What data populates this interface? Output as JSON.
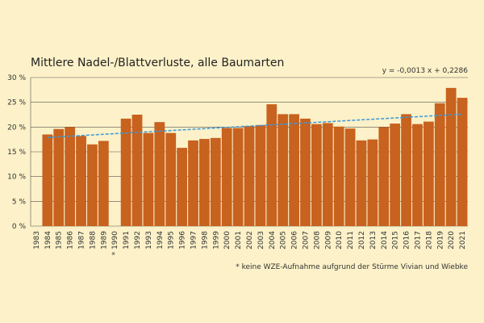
{
  "chart_data": {
    "type": "bar",
    "title": "Mittlere Nadel-/Blattverluste, alle Baumarten",
    "footnote": "* keine WZE-Aufnahme aufgrund der Stürme Vivian und Wiebke",
    "categories": [
      "1983",
      "1984",
      "1985",
      "1986",
      "1987",
      "1988",
      "1989",
      "* 1990",
      "1991",
      "1992",
      "1993",
      "1994",
      "1995",
      "1996",
      "1997",
      "1998",
      "1999",
      "2000",
      "2001",
      "2002",
      "2003",
      "2004",
      "2005",
      "2006",
      "2007",
      "2008",
      "2009",
      "2010",
      "2011",
      "2012",
      "2013",
      "2014",
      "2015",
      "2016",
      "2017",
      "2018",
      "2019",
      "2020",
      "2021"
    ],
    "values": [
      null,
      18.5,
      19.6,
      20.0,
      18.2,
      16.5,
      17.2,
      null,
      21.7,
      22.5,
      18.8,
      21.0,
      18.8,
      15.8,
      17.3,
      17.6,
      17.8,
      19.8,
      19.8,
      20.2,
      20.4,
      24.6,
      22.6,
      22.6,
      21.7,
      20.6,
      20.8,
      20.1,
      19.7,
      17.3,
      17.5,
      20.0,
      20.7,
      22.6,
      20.6,
      21.1,
      24.8,
      27.9,
      25.9
    ],
    "color": "#c8621f",
    "ylim": [
      0,
      30
    ],
    "yticks": [
      {
        "value": 0,
        "label": "0 %"
      },
      {
        "value": 5,
        "label": "5 %"
      },
      {
        "value": 10,
        "label": "10 %"
      },
      {
        "value": 15,
        "label": "15 %"
      },
      {
        "value": 20,
        "label": "20 %"
      },
      {
        "value": 25,
        "label": "25 %"
      },
      {
        "value": 30,
        "label": "30 %"
      }
    ],
    "grid": true,
    "trend": {
      "label": "y = -0,0013 x + 0,2286",
      "values": [
        17.9,
        22.6
      ],
      "color": "#3a9ad9"
    }
  }
}
